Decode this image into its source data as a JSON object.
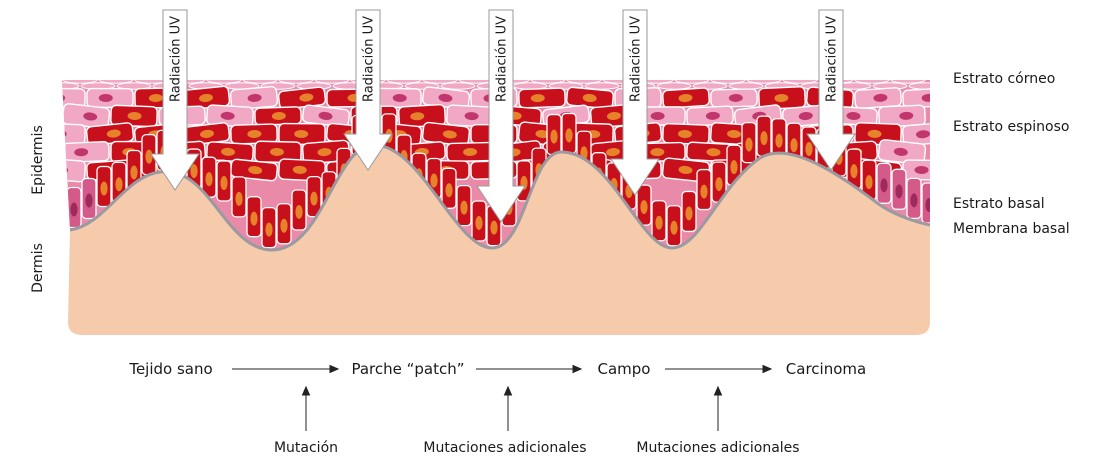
{
  "diagram": {
    "uv_label": "Radiación UV",
    "uv_arrow_count": 5,
    "layers": {
      "corneum": "Estrato córneo",
      "spinosum": "Estrato espinoso",
      "basal": "Estrato basal",
      "membrane": "Membrana basal"
    },
    "side_labels": {
      "epidermis": "Epidermis",
      "dermis": "Dermis"
    },
    "progression": {
      "stages": [
        "Tejido sano",
        "Parche “patch”",
        "Campo",
        "Carcinoma"
      ],
      "causes": [
        "Mutación",
        "Mutaciones adicionales",
        "Mutaciones adicionales"
      ]
    },
    "colors": {
      "dermis": "#f6cbab",
      "mutated_cell": "#c8101c",
      "mutated_nucleus": "#e6822a",
      "healthy_cell": "#f0a8c4",
      "healthy_nucleus": "#c2366e",
      "membrane": "#9a9aa0"
    }
  }
}
